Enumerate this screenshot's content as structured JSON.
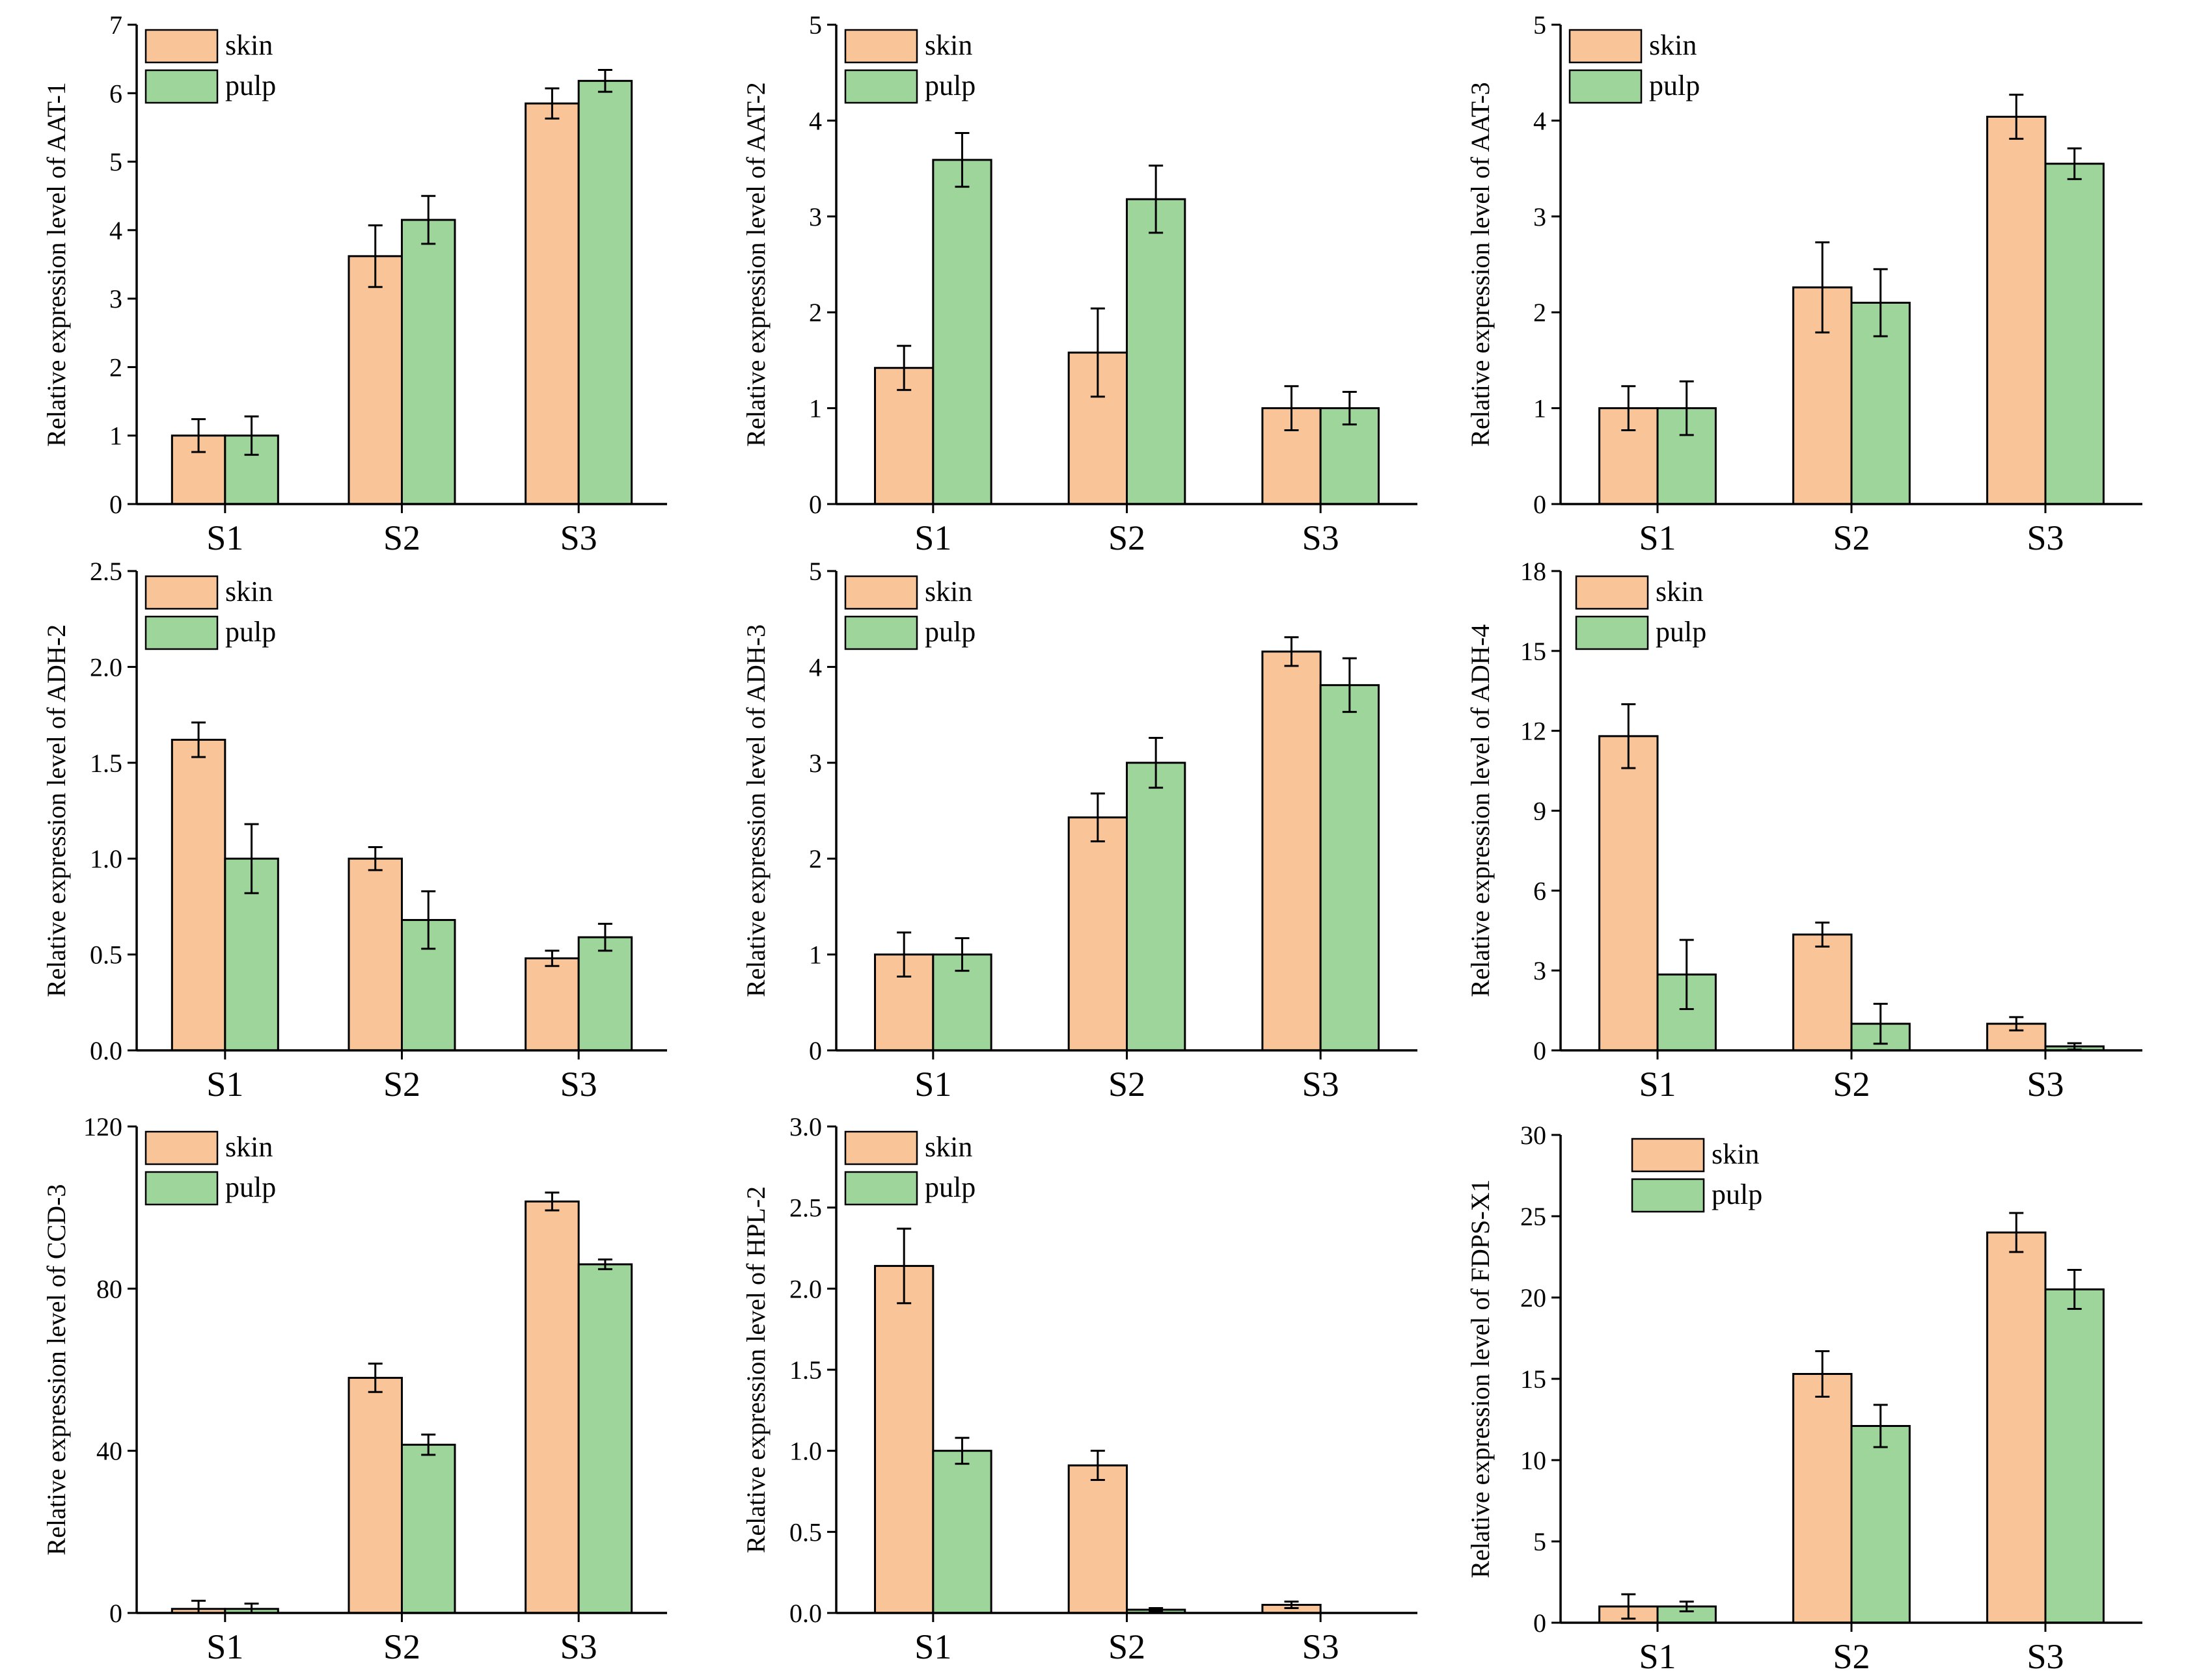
{
  "colors": {
    "skin": "#f9c598",
    "pulp": "#9dd59a",
    "axis": "#000000"
  },
  "chart_data": [
    {
      "type": "bar",
      "categories": [
        "S1",
        "S2",
        "S3"
      ],
      "ylabel": "Relative expression level of AAT-1",
      "ylim": [
        0,
        7
      ],
      "yticks": [
        "0",
        "1",
        "2",
        "3",
        "4",
        "5",
        "6",
        "7"
      ],
      "legend": "top-left",
      "series": [
        {
          "name": "skin",
          "values": [
            1.0,
            3.62,
            5.85
          ],
          "errors": [
            0.24,
            0.45,
            0.22
          ]
        },
        {
          "name": "pulp",
          "values": [
            1.0,
            4.15,
            6.18
          ],
          "errors": [
            0.28,
            0.35,
            0.16
          ]
        }
      ]
    },
    {
      "type": "bar",
      "categories": [
        "S1",
        "S2",
        "S3"
      ],
      "ylabel": "Relative expression level of AAT-2",
      "ylim": [
        0,
        5
      ],
      "yticks": [
        "0",
        "1",
        "2",
        "3",
        "4",
        "5"
      ],
      "legend": "top-left",
      "series": [
        {
          "name": "skin",
          "values": [
            1.42,
            1.58,
            1.0
          ],
          "errors": [
            0.23,
            0.46,
            0.23
          ]
        },
        {
          "name": "pulp",
          "values": [
            3.59,
            3.18,
            1.0
          ],
          "errors": [
            0.28,
            0.35,
            0.17
          ]
        }
      ]
    },
    {
      "type": "bar",
      "categories": [
        "S1",
        "S2",
        "S3"
      ],
      "ylabel": "Relative expression level of AAT-3",
      "ylim": [
        0,
        5
      ],
      "yticks": [
        "0",
        "1",
        "2",
        "3",
        "4",
        "5"
      ],
      "legend": "top-left",
      "series": [
        {
          "name": "skin",
          "values": [
            1.0,
            2.26,
            4.04
          ],
          "errors": [
            0.23,
            0.47,
            0.23
          ]
        },
        {
          "name": "pulp",
          "values": [
            1.0,
            2.1,
            3.55
          ],
          "errors": [
            0.28,
            0.35,
            0.16
          ]
        }
      ]
    },
    {
      "type": "bar",
      "categories": [
        "S1",
        "S2",
        "S3"
      ],
      "ylabel": "Relative expression level of ADH-2",
      "ylim": [
        0,
        2.5
      ],
      "yticks": [
        "0.0",
        "0.5",
        "1.0",
        "1.5",
        "2.0",
        "2.5"
      ],
      "legend": "top-left",
      "series": [
        {
          "name": "skin",
          "values": [
            1.62,
            1.0,
            0.48
          ],
          "errors": [
            0.09,
            0.06,
            0.04
          ]
        },
        {
          "name": "pulp",
          "values": [
            1.0,
            0.68,
            0.59
          ],
          "errors": [
            0.18,
            0.15,
            0.07
          ]
        }
      ]
    },
    {
      "type": "bar",
      "categories": [
        "S1",
        "S2",
        "S3"
      ],
      "ylabel": "Relative expression level of ADH-3",
      "ylim": [
        0,
        5
      ],
      "yticks": [
        "0",
        "1",
        "2",
        "3",
        "4",
        "5"
      ],
      "legend": "top-left",
      "series": [
        {
          "name": "skin",
          "values": [
            1.0,
            2.43,
            4.16
          ],
          "errors": [
            0.23,
            0.25,
            0.15
          ]
        },
        {
          "name": "pulp",
          "values": [
            1.0,
            3.0,
            3.81
          ],
          "errors": [
            0.17,
            0.26,
            0.28
          ]
        }
      ]
    },
    {
      "type": "bar",
      "categories": [
        "S1",
        "S2",
        "S3"
      ],
      "ylabel": "Relative expression level of ADH-4",
      "ylim": [
        0,
        18
      ],
      "yticks": [
        "0",
        "3",
        "6",
        "9",
        "12",
        "15",
        "18"
      ],
      "legend": "top-left",
      "series": [
        {
          "name": "skin",
          "values": [
            11.8,
            4.35,
            1.0
          ],
          "errors": [
            1.2,
            0.45,
            0.25
          ]
        },
        {
          "name": "pulp",
          "values": [
            2.85,
            1.0,
            0.15
          ],
          "errors": [
            1.3,
            0.75,
            0.12
          ]
        }
      ]
    },
    {
      "type": "bar",
      "categories": [
        "S1",
        "S2",
        "S3"
      ],
      "ylabel": "Relative expression level of CCD-3",
      "ylim": [
        0,
        120
      ],
      "yticks": [
        "0",
        "40",
        "80",
        "120"
      ],
      "legend": "top-left",
      "series": [
        {
          "name": "skin",
          "values": [
            1.0,
            58.0,
            101.5
          ],
          "errors": [
            2.0,
            3.5,
            2.2
          ]
        },
        {
          "name": "pulp",
          "values": [
            1.0,
            41.5,
            86.0
          ],
          "errors": [
            1.3,
            2.5,
            1.2
          ]
        }
      ]
    },
    {
      "type": "bar",
      "categories": [
        "S1",
        "S2",
        "S3"
      ],
      "ylabel": "Relative expression level of HPL-2",
      "ylim": [
        0,
        3.0
      ],
      "yticks": [
        "0.0",
        "0.5",
        "1.0",
        "1.5",
        "2.0",
        "2.5",
        "3.0"
      ],
      "legend": "top-left",
      "series": [
        {
          "name": "skin",
          "values": [
            2.14,
            0.91,
            0.05
          ],
          "errors": [
            0.23,
            0.09,
            0.02
          ]
        },
        {
          "name": "pulp",
          "values": [
            1.0,
            0.02,
            0.0
          ],
          "errors": [
            0.08,
            0.01,
            0.0
          ]
        }
      ]
    },
    {
      "type": "bar",
      "categories": [
        "S1",
        "S2",
        "S3"
      ],
      "ylabel": "Relative expression level of FDPS-X1",
      "ylim": [
        0,
        30
      ],
      "yticks": [
        "0",
        "5",
        "10",
        "15",
        "20",
        "25",
        "30"
      ],
      "legend": "top-left",
      "series": [
        {
          "name": "skin",
          "values": [
            1.0,
            15.3,
            24.0
          ],
          "errors": [
            0.75,
            1.4,
            1.2
          ]
        },
        {
          "name": "pulp",
          "values": [
            1.0,
            12.1,
            20.5
          ],
          "errors": [
            0.3,
            1.3,
            1.2
          ]
        }
      ]
    }
  ]
}
